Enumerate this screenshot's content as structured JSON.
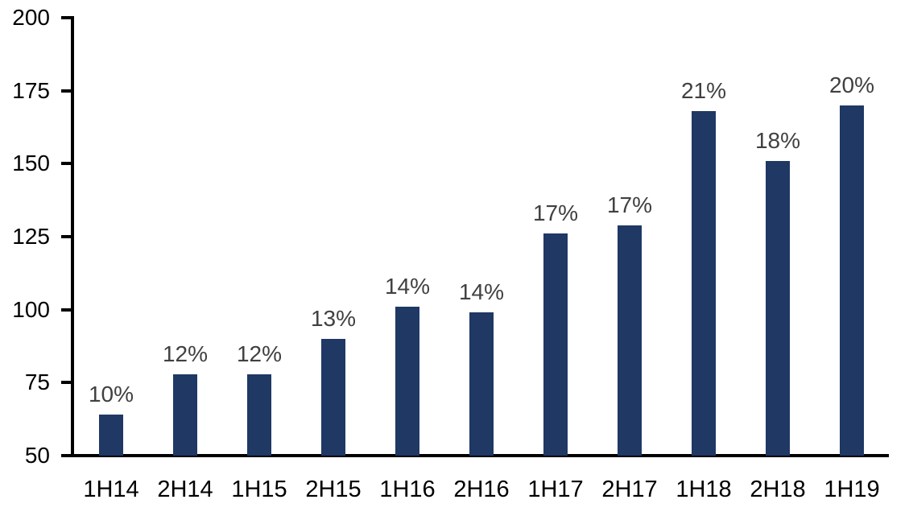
{
  "chart_data": {
    "type": "bar",
    "title": "",
    "xlabel": "",
    "ylabel": "",
    "categories": [
      "1H14",
      "2H14",
      "1H15",
      "2H15",
      "1H16",
      "2H16",
      "1H17",
      "2H17",
      "1H18",
      "2H18",
      "1H19"
    ],
    "values": [
      64,
      78,
      78,
      90,
      101,
      99,
      126,
      129,
      168,
      151,
      170
    ],
    "data_labels": [
      "10%",
      "12%",
      "12%",
      "13%",
      "14%",
      "14%",
      "17%",
      "17%",
      "21%",
      "18%",
      "20%"
    ],
    "ylim": [
      50,
      200
    ],
    "yticks": [
      50,
      75,
      100,
      125,
      150,
      175,
      200
    ],
    "grid": false,
    "legend": false,
    "bar_color": "#1F3864",
    "data_label_color": "#404040",
    "axis_label_color": "#000000",
    "axis_line_color": "#000000",
    "background_color": "#FFFFFF"
  }
}
